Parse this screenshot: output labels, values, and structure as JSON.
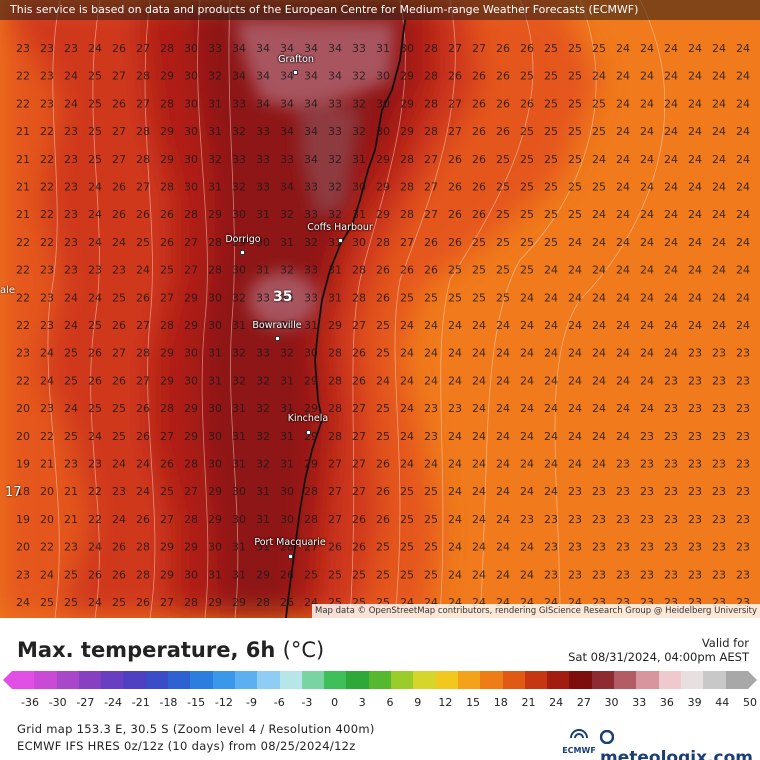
{
  "map": {
    "banner": "This service is based on data and products of the European Centre for Medium-range Weather Forecasts (ECMWF)",
    "attribution": "Map data © OpenStreetMap contributors, rendering GIScience Research Group @ Heidelberg University",
    "places": [
      {
        "name": "Grafton",
        "lx": 296,
        "ly": 66,
        "dx": 295,
        "dy": 72
      },
      {
        "name": "Coffs Harbour",
        "lx": 340,
        "ly": 234,
        "dx": 340,
        "dy": 240
      },
      {
        "name": "Dorrigo",
        "lx": 243,
        "ly": 246,
        "dx": 242,
        "dy": 252
      },
      {
        "name": "Bowraville",
        "lx": 277,
        "ly": 332,
        "dx": 277,
        "dy": 338
      },
      {
        "name": "Kinchela",
        "lx": 308,
        "ly": 425,
        "dx": 308,
        "dy": 432
      },
      {
        "name": "Port Macquarie",
        "lx": 290,
        "ly": 549,
        "dx": 290,
        "dy": 556
      }
    ],
    "highlight_value": "35",
    "highlight_value_2": "17",
    "left_label": "ale",
    "grid_rows": [
      "23 23 23 24 26 27 28 30 33 34 34 34 34 34 33 31 30 28 27 27 26 26 25 25 25 24 24 24 24 24 24",
      "22 23 24 25 27 28 29 30 32 34 34 34 34 34 32 30 29 28 26 26 26 25 25 25 24 24 24 24 24 24 24",
      "22 23 24 25 26 27 28 30 31 33 34 34 34 33 32 30 29 28 27 26 26 26 25 25 25 24 24 24 24 24 24",
      "21 22 23 25 27 28 29 30 31 32 33 34 34 33 32 30 29 28 27 26 26 25 25 25 25 24 24 24 24 24 24",
      "21 22 23 25 27 28 29 30 32 33 33 33 34 32 31 29 28 27 26 26 25 25 25 25 24 24 24 24 24 24 24",
      "21 22 23 24 26 27 28 30 31 32 33 34 33 32 30 29 28 27 26 26 25 25 25 25 25 24 24 24 24 24 24",
      "21 22 23 24 26 26 26 28 29 30 31 32 33 32 31 29 28 27 26 26 25 25 25 25 24 24 24 24 24 24 24",
      "22 22 23 24 24 25 26 27 28 29 30 31 32 31 30 28 27 26 26 25 25 25 25 24 24 24 24 24 24 24 24",
      "22 23 23 23 23 24 25 27 28 30 31 32 33 31 28 26 26 26 25 25 25 25 24 24 24 24 24 24 24 24 24",
      "22 23 24 24 25 26 27 29 30 32 33 34 33 31 28 26 25 25 25 25 25 24 24 24 24 24 24 24 24 24 24",
      "22 23 24 25 26 27 28 29 30 31 32 33 31 29 27 25 24 24 24 24 24 24 24 24 24 24 24 24 24 24 24",
      "23 24 25 26 27 28 29 30 31 32 33 32 30 28 26 25 24 24 24 24 24 24 24 24 24 24 24 24 23 23 23",
      "22 24 25 26 26 27 29 30 31 32 32 31 29 28 26 24 24 24 24 24 24 24 24 24 24 24 24 23 23 23 23",
      "20 23 24 25 25 26 28 29 30 31 32 31 29 28 27 25 24 23 23 24 24 24 24 24 24 24 24 23 23 23 23",
      "20 22 25 24 25 26 27 29 30 31 32 31 29 28 27 25 24 23 24 24 24 24 24 24 24 24 23 23 23 23 23",
      "19 21 23 23 24 24 26 28 30 31 32 31 29 27 27 26 24 24 24 24 24 24 24 24 24 23 23 23 23 23 23",
      "18 20 21 22 23 24 25 27 29 30 31 30 28 27 27 26 25 25 24 24 24 24 24 23 23 23 23 23 23 23 23",
      "19 20 21 22 24 26 27 28 29 30 31 30 28 27 26 26 25 25 24 24 24 23 23 23 23 23 23 23 23 23 23",
      "20 22 23 24 26 28 29 29 30 31 31 28 27 26 26 25 25 25 24 24 24 24 23 23 23 23 23 23 23 23 23",
      "23 24 25 26 26 28 29 30 31 31 29 26 25 25 25 25 25 25 24 24 24 24 23 23 23 23 23 23 23 23 23",
      "24 25 25 24 25 26 27 28 29 29 28 26 24 25 25 25 24 24 24 24 24 24 24 24 23 23 23 23 23 23 23"
    ]
  },
  "legend": {
    "title": "Max. temperature, 6h",
    "unit": "(°C)",
    "valid_label": "Valid for",
    "valid_value": "Sat 08/31/2024, 04:00pm AEST",
    "ticks": [
      "-36",
      "-30",
      "-27",
      "-24",
      "-21",
      "-18",
      "-15",
      "-12",
      "-9",
      "-6",
      "-3",
      "0",
      "3",
      "6",
      "9",
      "12",
      "15",
      "18",
      "21",
      "24",
      "27",
      "30",
      "33",
      "36",
      "39",
      "44",
      "50"
    ],
    "colors": [
      "#e24fe6",
      "#c84ad6",
      "#a847c9",
      "#8840c3",
      "#6a3ec0",
      "#4f3fc2",
      "#3b4cc9",
      "#2e62d3",
      "#2b7ddf",
      "#3b97ea",
      "#5cb0f2",
      "#8fcdf4",
      "#b6e6e8",
      "#7ad3a2",
      "#3fbf5a",
      "#2fa83a",
      "#56b82f",
      "#9ccc2a",
      "#d6d62a",
      "#f2c81f",
      "#f4a21a",
      "#ee7d16",
      "#e05a14",
      "#c63612",
      "#a21c10",
      "#7e0e0e",
      "#8e2b32",
      "#b35c66",
      "#d8959e",
      "#f0c9cf",
      "#e8e0e0",
      "#c8c8c8",
      "#a8a8a8"
    ],
    "grid_line": "Grid map 153.3 E, 30.5 S (Zoom level 4 / Resolution 400m)",
    "model_line": "ECMWF IFS HRES 0z/12z (10 days) from 08/25/2024/12z",
    "ecmwf_logo": "ECMWF",
    "brand": "meteologix.com"
  }
}
